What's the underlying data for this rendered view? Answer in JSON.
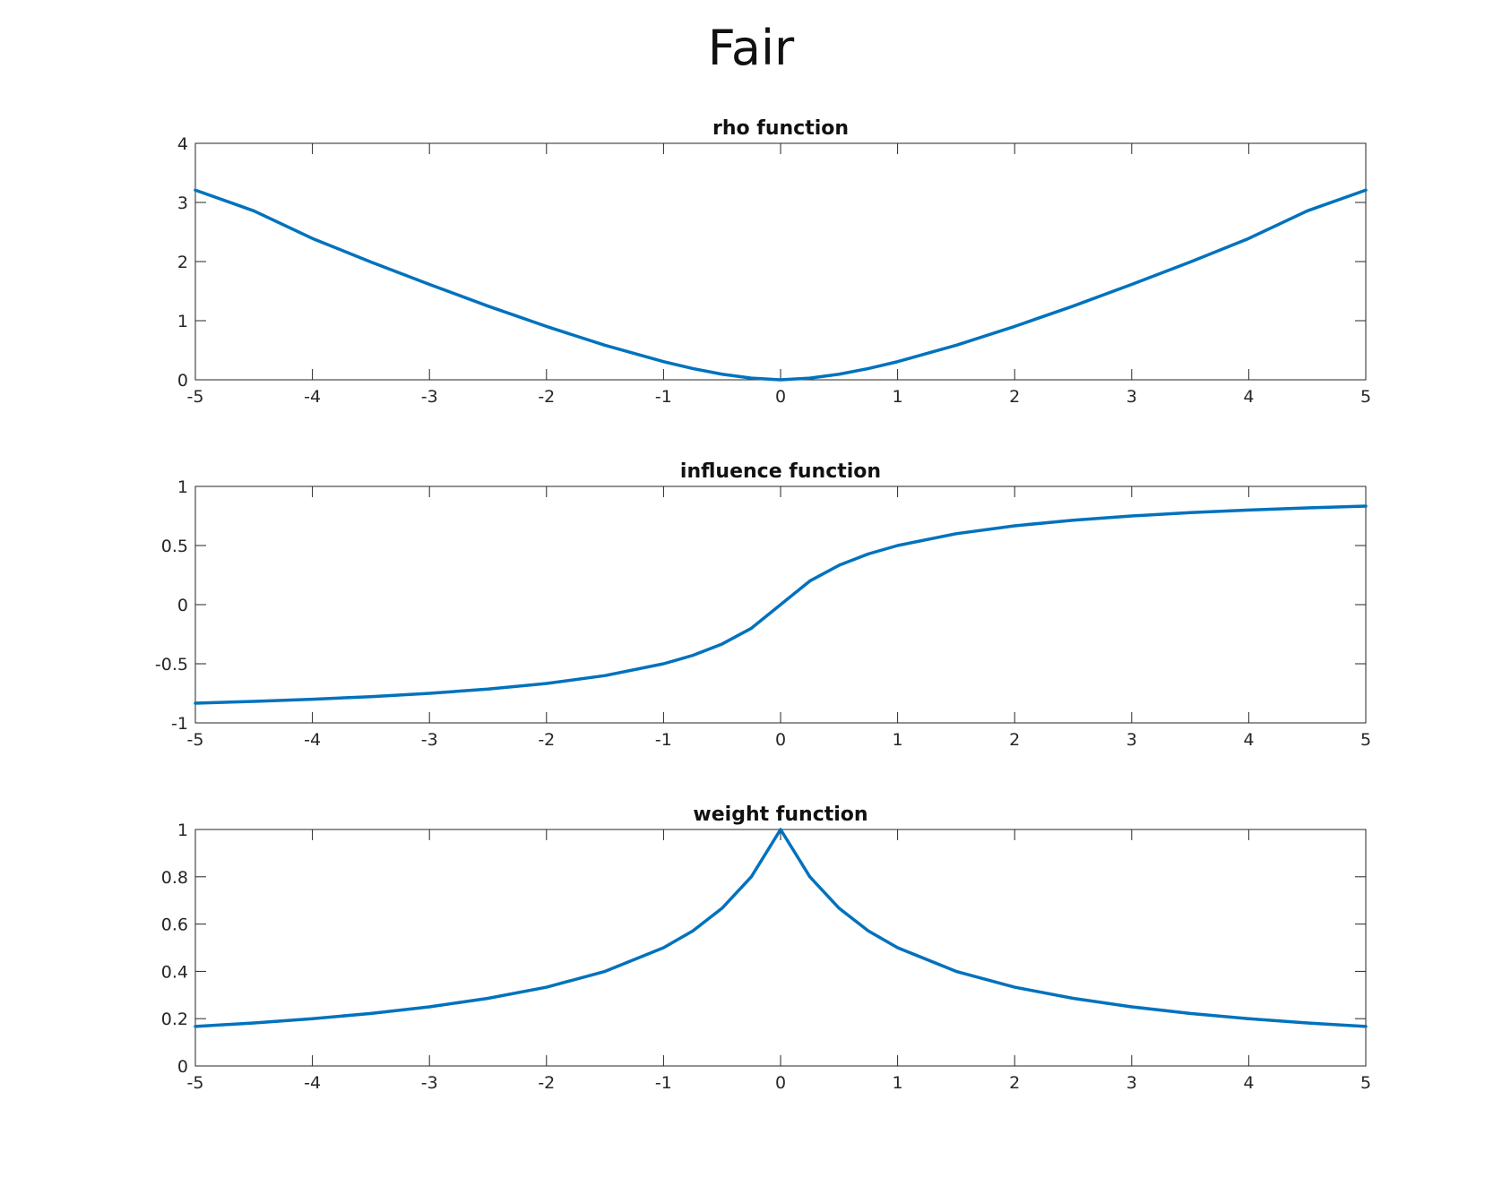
{
  "figure": {
    "title": "Fair"
  },
  "colors": {
    "line": "#0072BD",
    "axes": "#262626"
  },
  "chart_data": [
    {
      "type": "line",
      "title": "rho function",
      "xlabel": "",
      "ylabel": "",
      "xlim": [
        -5,
        5
      ],
      "ylim": [
        0,
        4
      ],
      "xticks": [
        -5,
        -4,
        -3,
        -2,
        -1,
        0,
        1,
        2,
        3,
        4,
        5
      ],
      "yticks": [
        0,
        1,
        2,
        3,
        4
      ],
      "xtick_labels": [
        "-5",
        "-4",
        "-3",
        "-2",
        "-1",
        "0",
        "1",
        "2",
        "3",
        "4",
        "5"
      ],
      "ytick_labels": [
        "0",
        "1",
        "2",
        "3",
        "4"
      ],
      "grid": false,
      "series": [
        {
          "x": [
            -5,
            -4.5,
            -4,
            -3.5,
            -3,
            -2.5,
            -2,
            -1.5,
            -1,
            -0.75,
            -0.5,
            -0.25,
            0,
            0.25,
            0.5,
            0.75,
            1,
            1.5,
            2,
            2.5,
            3,
            3.5,
            4,
            4.5,
            5
          ],
          "y": [
            3.208,
            2.857,
            2.391,
            1.992,
            1.614,
            1.247,
            0.903,
            0.584,
            0.307,
            0.19,
            0.095,
            0.028,
            0.0,
            0.028,
            0.095,
            0.19,
            0.307,
            0.584,
            0.903,
            1.247,
            1.614,
            1.992,
            2.391,
            2.857,
            3.208
          ]
        }
      ]
    },
    {
      "type": "line",
      "title": "influence function",
      "xlabel": "",
      "ylabel": "",
      "xlim": [
        -5,
        5
      ],
      "ylim": [
        -1,
        1
      ],
      "xticks": [
        -5,
        -4,
        -3,
        -2,
        -1,
        0,
        1,
        2,
        3,
        4,
        5
      ],
      "yticks": [
        -1,
        -0.5,
        0,
        0.5,
        1
      ],
      "xtick_labels": [
        "-5",
        "-4",
        "-3",
        "-2",
        "-1",
        "0",
        "1",
        "2",
        "3",
        "4",
        "5"
      ],
      "ytick_labels": [
        "-1",
        "-0.5",
        "0",
        "0.5",
        "1"
      ],
      "grid": false,
      "series": [
        {
          "x": [
            -5,
            -4.5,
            -4,
            -3.5,
            -3,
            -2.5,
            -2,
            -1.5,
            -1,
            -0.75,
            -0.5,
            -0.25,
            0,
            0.25,
            0.5,
            0.75,
            1,
            1.5,
            2,
            2.5,
            3,
            3.5,
            4,
            4.5,
            5
          ],
          "y": [
            -0.833,
            -0.818,
            -0.8,
            -0.778,
            -0.75,
            -0.714,
            -0.667,
            -0.6,
            -0.5,
            -0.429,
            -0.333,
            -0.2,
            0.0,
            0.2,
            0.333,
            0.429,
            0.5,
            0.6,
            0.667,
            0.714,
            0.75,
            0.778,
            0.8,
            0.818,
            0.833
          ]
        }
      ]
    },
    {
      "type": "line",
      "title": "weight function",
      "xlabel": "",
      "ylabel": "",
      "xlim": [
        -5,
        5
      ],
      "ylim": [
        0,
        1
      ],
      "xticks": [
        -5,
        -4,
        -3,
        -2,
        -1,
        0,
        1,
        2,
        3,
        4,
        5
      ],
      "yticks": [
        0,
        0.2,
        0.4,
        0.6,
        0.8,
        1
      ],
      "xtick_labels": [
        "-5",
        "-4",
        "-3",
        "-2",
        "-1",
        "0",
        "1",
        "2",
        "3",
        "4",
        "5"
      ],
      "ytick_labels": [
        "0",
        "0.2",
        "0.4",
        "0.6",
        "0.8",
        "1"
      ],
      "grid": false,
      "series": [
        {
          "x": [
            -5,
            -4.5,
            -4,
            -3.5,
            -3,
            -2.5,
            -2,
            -1.5,
            -1,
            -0.75,
            -0.5,
            -0.25,
            0,
            0.25,
            0.5,
            0.75,
            1,
            1.5,
            2,
            2.5,
            3,
            3.5,
            4,
            4.5,
            5
          ],
          "y": [
            0.167,
            0.182,
            0.2,
            0.222,
            0.25,
            0.286,
            0.333,
            0.4,
            0.5,
            0.571,
            0.667,
            0.8,
            1.0,
            0.8,
            0.667,
            0.571,
            0.5,
            0.4,
            0.333,
            0.286,
            0.25,
            0.222,
            0.2,
            0.182,
            0.167
          ]
        }
      ]
    }
  ]
}
